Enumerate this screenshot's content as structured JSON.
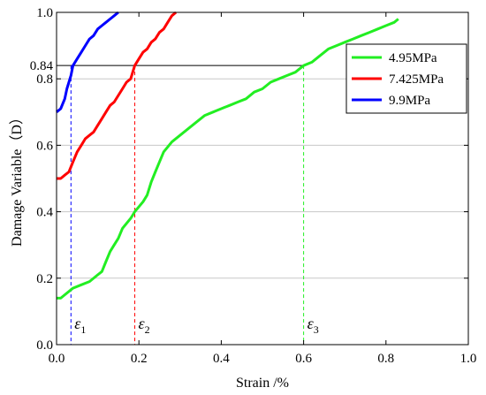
{
  "chart_data": {
    "type": "line",
    "xlabel": "Strain /%",
    "ylabel": "Damage Variable（D）",
    "xlim": [
      0.0,
      1.0
    ],
    "ylim": [
      0.0,
      1.0
    ],
    "xticks": [
      "0.0",
      "0.2",
      "0.4",
      "0.6",
      "0.8",
      "1.0"
    ],
    "yticks": [
      "0.0",
      "0.2",
      "0.4",
      "0.6",
      "0.8",
      "1.0"
    ],
    "grid": "horizontal",
    "legend_position": "top-right",
    "series": [
      {
        "name": "4.95MPa",
        "color": "#22ee22",
        "points": [
          [
            0.0,
            0.14
          ],
          [
            0.01,
            0.14
          ],
          [
            0.02,
            0.15
          ],
          [
            0.04,
            0.17
          ],
          [
            0.06,
            0.18
          ],
          [
            0.08,
            0.19
          ],
          [
            0.1,
            0.21
          ],
          [
            0.11,
            0.22
          ],
          [
            0.12,
            0.25
          ],
          [
            0.13,
            0.28
          ],
          [
            0.14,
            0.3
          ],
          [
            0.15,
            0.32
          ],
          [
            0.16,
            0.35
          ],
          [
            0.18,
            0.38
          ],
          [
            0.19,
            0.4
          ],
          [
            0.21,
            0.43
          ],
          [
            0.22,
            0.45
          ],
          [
            0.23,
            0.49
          ],
          [
            0.24,
            0.52
          ],
          [
            0.25,
            0.55
          ],
          [
            0.26,
            0.58
          ],
          [
            0.28,
            0.61
          ],
          [
            0.3,
            0.63
          ],
          [
            0.32,
            0.65
          ],
          [
            0.34,
            0.67
          ],
          [
            0.36,
            0.69
          ],
          [
            0.38,
            0.7
          ],
          [
            0.4,
            0.71
          ],
          [
            0.42,
            0.72
          ],
          [
            0.44,
            0.73
          ],
          [
            0.46,
            0.74
          ],
          [
            0.48,
            0.76
          ],
          [
            0.5,
            0.77
          ],
          [
            0.52,
            0.79
          ],
          [
            0.54,
            0.8
          ],
          [
            0.56,
            0.81
          ],
          [
            0.58,
            0.82
          ],
          [
            0.6,
            0.84
          ],
          [
            0.62,
            0.85
          ],
          [
            0.64,
            0.87
          ],
          [
            0.66,
            0.89
          ],
          [
            0.68,
            0.9
          ],
          [
            0.7,
            0.91
          ],
          [
            0.72,
            0.92
          ],
          [
            0.74,
            0.93
          ],
          [
            0.76,
            0.94
          ],
          [
            0.78,
            0.95
          ],
          [
            0.8,
            0.96
          ],
          [
            0.82,
            0.97
          ],
          [
            0.83,
            0.98
          ]
        ]
      },
      {
        "name": "7.425MPa",
        "color": "#ff0000",
        "points": [
          [
            0.0,
            0.5
          ],
          [
            0.01,
            0.5
          ],
          [
            0.02,
            0.51
          ],
          [
            0.03,
            0.52
          ],
          [
            0.04,
            0.55
          ],
          [
            0.05,
            0.58
          ],
          [
            0.06,
            0.6
          ],
          [
            0.07,
            0.62
          ],
          [
            0.08,
            0.63
          ],
          [
            0.09,
            0.64
          ],
          [
            0.1,
            0.66
          ],
          [
            0.11,
            0.68
          ],
          [
            0.12,
            0.7
          ],
          [
            0.13,
            0.72
          ],
          [
            0.14,
            0.73
          ],
          [
            0.15,
            0.75
          ],
          [
            0.16,
            0.77
          ],
          [
            0.17,
            0.79
          ],
          [
            0.18,
            0.8
          ],
          [
            0.19,
            0.84
          ],
          [
            0.2,
            0.86
          ],
          [
            0.21,
            0.88
          ],
          [
            0.22,
            0.89
          ],
          [
            0.23,
            0.91
          ],
          [
            0.24,
            0.92
          ],
          [
            0.25,
            0.94
          ],
          [
            0.26,
            0.95
          ],
          [
            0.27,
            0.97
          ],
          [
            0.28,
            0.99
          ],
          [
            0.29,
            1.0
          ]
        ]
      },
      {
        "name": "9.9MPa",
        "color": "#0000ff",
        "points": [
          [
            0.0,
            0.7
          ],
          [
            0.01,
            0.71
          ],
          [
            0.02,
            0.74
          ],
          [
            0.025,
            0.77
          ],
          [
            0.03,
            0.79
          ],
          [
            0.035,
            0.81
          ],
          [
            0.04,
            0.84
          ],
          [
            0.05,
            0.86
          ],
          [
            0.06,
            0.88
          ],
          [
            0.07,
            0.9
          ],
          [
            0.08,
            0.92
          ],
          [
            0.09,
            0.93
          ],
          [
            0.1,
            0.95
          ],
          [
            0.11,
            0.96
          ],
          [
            0.12,
            0.97
          ],
          [
            0.13,
            0.98
          ],
          [
            0.14,
            0.99
          ],
          [
            0.15,
            1.0
          ]
        ]
      }
    ],
    "reference_line": {
      "y": 0.84,
      "y_label": "0.84",
      "x_end": 0.6
    },
    "markers": [
      {
        "symbol": "ε",
        "sub": "1",
        "x": 0.035,
        "color": "#0000ff"
      },
      {
        "symbol": "ε",
        "sub": "2",
        "x": 0.19,
        "color": "#ff0000"
      },
      {
        "symbol": "ε",
        "sub": "3",
        "x": 0.6,
        "color": "#22ee22"
      }
    ],
    "ylabel_color": "#1a1a8c"
  }
}
